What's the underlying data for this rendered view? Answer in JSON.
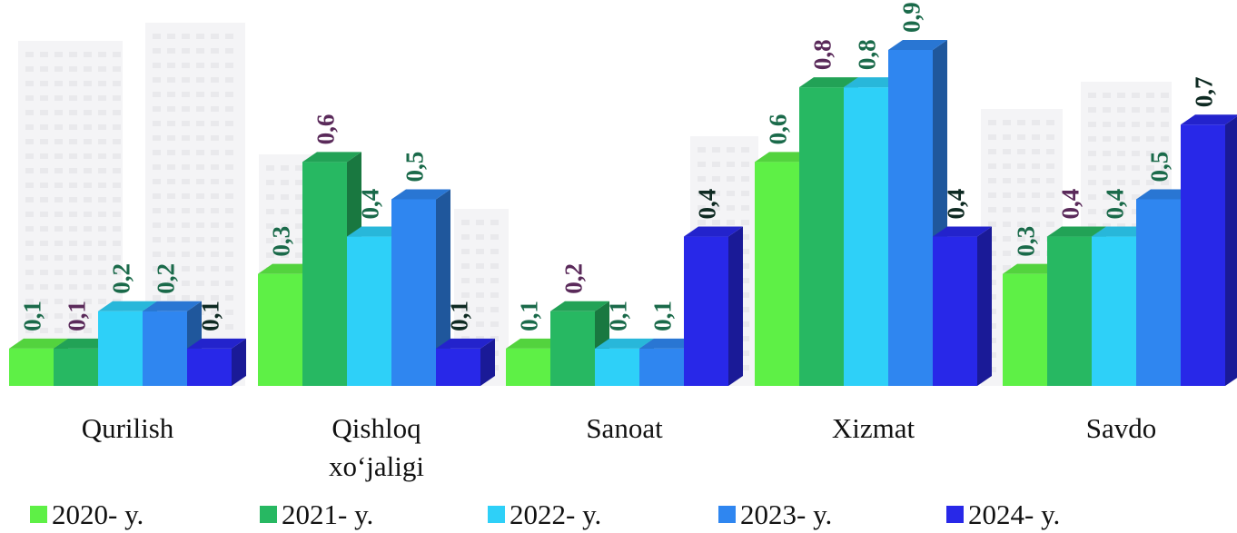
{
  "chart_data": {
    "type": "bar",
    "title": "",
    "xlabel": "",
    "ylabel": "",
    "ylim": [
      0,
      0.9
    ],
    "grid": false,
    "legend_position": "bottom",
    "categories": [
      [
        "Qurilish"
      ],
      [
        "Qishloq",
        "xo‘jaligi"
      ],
      [
        "Sanoat"
      ],
      [
        "Xizmat"
      ],
      [
        "Savdo"
      ]
    ],
    "series": [
      {
        "name": "2020- y.",
        "color": "#5ef046",
        "values": [
          0.1,
          0.3,
          0.1,
          0.6,
          0.3
        ],
        "labels": [
          "0,1",
          "0,3",
          "0,1",
          "0,6",
          "0,3"
        ],
        "label_color": "#1a6a4a"
      },
      {
        "name": "2021- y.",
        "color": "#27b862",
        "values": [
          0.1,
          0.6,
          0.2,
          0.8,
          0.4
        ],
        "labels": [
          "0,1",
          "0,6",
          "0,2",
          "0,8",
          "0,4"
        ],
        "label_color": "#5a2a5a"
      },
      {
        "name": "2022- y.",
        "color": "#2ed0f8",
        "values": [
          0.2,
          0.4,
          0.1,
          0.8,
          0.4
        ],
        "labels": [
          "0,2",
          "0,4",
          "0,1",
          "0,8",
          "0,4"
        ],
        "label_color": "#1a6a4a"
      },
      {
        "name": "2023- y.",
        "color": "#2f86f0",
        "values": [
          0.2,
          0.5,
          0.1,
          0.9,
          0.5
        ],
        "labels": [
          "0,2",
          "0,5",
          "0,1",
          "0,9",
          "0,5"
        ],
        "label_color": "#1a6a4a"
      },
      {
        "name": "2024- y.",
        "color": "#2828e8",
        "values": [
          0.1,
          0.1,
          0.4,
          0.4,
          0.7
        ],
        "labels": [
          "0,1",
          "0,1",
          "0,4",
          "0,4",
          "0,7"
        ],
        "label_color": "#0e2a22"
      }
    ]
  }
}
